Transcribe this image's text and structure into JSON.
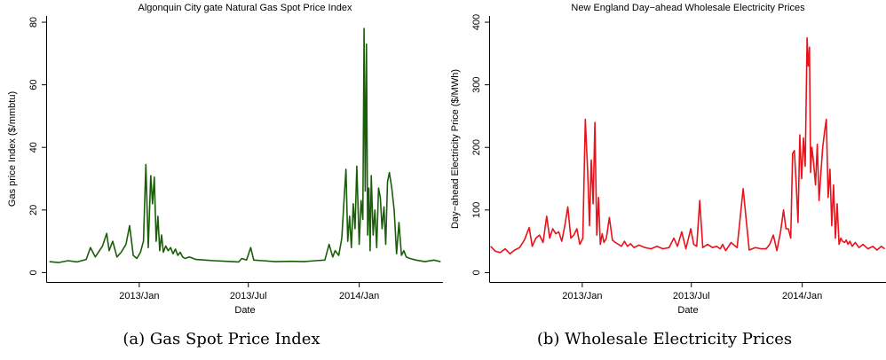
{
  "chart_data": [
    {
      "type": "line",
      "title": "Algonquin City gate Natural Gas Spot Price Index",
      "xlabel": "Date",
      "ylabel": "Gas price Index ($/mmbtu)",
      "x_ticks": [
        "2013/Jan",
        "2013/Jul",
        "2014/Jan"
      ],
      "y_ticks": [
        0,
        20,
        40,
        60,
        80
      ],
      "xlim": [
        "2012-08-01",
        "2014-05-20"
      ],
      "ylim": [
        -3,
        82
      ],
      "grid": false,
      "color": "#1a5e0a",
      "caption": "(a) Gas Spot Price Index",
      "series": [
        {
          "x": [
            "2012-08-05",
            "2012-08-20",
            "2012-09-05",
            "2012-09-20",
            "2012-10-05",
            "2012-10-12",
            "2012-10-20",
            "2012-11-01",
            "2012-11-08",
            "2012-11-12",
            "2012-11-18",
            "2012-11-25",
            "2012-12-02",
            "2012-12-10",
            "2012-12-16",
            "2012-12-22",
            "2012-12-28",
            "2013-01-03",
            "2013-01-08",
            "2013-01-12",
            "2013-01-16",
            "2013-01-20",
            "2013-01-23",
            "2013-01-26",
            "2013-01-29",
            "2013-02-01",
            "2013-02-04",
            "2013-02-07",
            "2013-02-10",
            "2013-02-14",
            "2013-02-18",
            "2013-02-22",
            "2013-02-26",
            "2013-03-02",
            "2013-03-06",
            "2013-03-10",
            "2013-03-14",
            "2013-03-18",
            "2013-03-25",
            "2013-04-05",
            "2013-04-20",
            "2013-05-05",
            "2013-05-25",
            "2013-06-15",
            "2013-06-20",
            "2013-06-28",
            "2013-07-05",
            "2013-07-10",
            "2013-07-25",
            "2013-08-15",
            "2013-09-10",
            "2013-10-01",
            "2013-10-20",
            "2013-11-05",
            "2013-11-12",
            "2013-11-18",
            "2013-11-22",
            "2013-11-28",
            "2013-12-03",
            "2013-12-07",
            "2013-12-10",
            "2013-12-13",
            "2013-12-16",
            "2013-12-19",
            "2013-12-22",
            "2013-12-25",
            "2013-12-28",
            "2014-01-01",
            "2014-01-04",
            "2014-01-07",
            "2014-01-09",
            "2014-01-11",
            "2014-01-13",
            "2014-01-15",
            "2014-01-17",
            "2014-01-19",
            "2014-01-21",
            "2014-01-24",
            "2014-01-27",
            "2014-01-30",
            "2014-02-02",
            "2014-02-05",
            "2014-02-08",
            "2014-02-11",
            "2014-02-14",
            "2014-02-17",
            "2014-02-20",
            "2014-02-24",
            "2014-02-28",
            "2014-03-04",
            "2014-03-08",
            "2014-03-12",
            "2014-03-16",
            "2014-03-20",
            "2014-03-26",
            "2014-04-05",
            "2014-04-20",
            "2014-05-05",
            "2014-05-16"
          ],
          "values": [
            3.5,
            3.2,
            3.8,
            3.4,
            4.2,
            8.0,
            5.0,
            8.5,
            12.5,
            7.0,
            10.0,
            5.0,
            6.5,
            9.0,
            15.0,
            5.5,
            4.5,
            6.5,
            10.0,
            34.5,
            8.0,
            31.0,
            22.0,
            30.5,
            10.0,
            18.0,
            7.0,
            12.0,
            6.5,
            8.5,
            7.0,
            8.0,
            6.0,
            7.5,
            5.5,
            6.5,
            5.0,
            4.5,
            5.0,
            4.2,
            4.0,
            3.8,
            3.6,
            3.4,
            4.5,
            4.0,
            8.0,
            4.0,
            3.8,
            3.5,
            3.6,
            3.5,
            3.8,
            4.0,
            9.0,
            5.0,
            7.0,
            5.5,
            11.0,
            24.0,
            33.0,
            10.0,
            18.0,
            8.0,
            22.0,
            14.0,
            34.0,
            9.0,
            23.0,
            17.0,
            78.0,
            26.0,
            73.0,
            12.0,
            27.0,
            7.0,
            31.0,
            12.0,
            20.0,
            8.0,
            27.0,
            24.0,
            14.0,
            21.0,
            9.0,
            29.0,
            32.0,
            27.0,
            20.0,
            6.0,
            16.0,
            5.5,
            7.0,
            5.0,
            4.5,
            4.0,
            3.5,
            4.0,
            3.5
          ]
        }
      ]
    },
    {
      "type": "line",
      "title": "New England Day−ahead Wholesale Electricity Prices",
      "xlabel": "Date",
      "ylabel": "Day−ahead Electricity Price ($/MWh)",
      "x_ticks": [
        "2013/Jan",
        "2013/Jul",
        "2014/Jan"
      ],
      "y_ticks": [
        0,
        100,
        200,
        300,
        400
      ],
      "xlim": [
        "2012-08-01",
        "2014-05-20"
      ],
      "ylim": [
        -15,
        410
      ],
      "grid": false,
      "color": "#e8131b",
      "caption": "(b) Wholesale Electricity Prices",
      "series": [
        {
          "x": [
            "2012-08-02",
            "2012-08-10",
            "2012-08-18",
            "2012-08-26",
            "2012-09-03",
            "2012-09-11",
            "2012-09-19",
            "2012-09-27",
            "2012-10-05",
            "2012-10-10",
            "2012-10-16",
            "2012-10-22",
            "2012-10-28",
            "2012-11-03",
            "2012-11-08",
            "2012-11-13",
            "2012-11-18",
            "2012-11-23",
            "2012-11-28",
            "2012-12-03",
            "2012-12-08",
            "2012-12-13",
            "2012-12-18",
            "2012-12-23",
            "2012-12-28",
            "2013-01-02",
            "2013-01-06",
            "2013-01-10",
            "2013-01-13",
            "2013-01-16",
            "2013-01-19",
            "2013-01-22",
            "2013-01-25",
            "2013-01-28",
            "2013-01-31",
            "2013-02-03",
            "2013-02-06",
            "2013-02-10",
            "2013-02-15",
            "2013-02-20",
            "2013-02-25",
            "2013-03-02",
            "2013-03-07",
            "2013-03-12",
            "2013-03-17",
            "2013-03-22",
            "2013-03-28",
            "2013-04-05",
            "2013-04-15",
            "2013-04-25",
            "2013-05-05",
            "2013-05-15",
            "2013-05-25",
            "2013-06-02",
            "2013-06-08",
            "2013-06-15",
            "2013-06-22",
            "2013-06-30",
            "2013-07-05",
            "2013-07-10",
            "2013-07-15",
            "2013-07-20",
            "2013-07-28",
            "2013-08-05",
            "2013-08-12",
            "2013-08-18",
            "2013-08-22",
            "2013-08-27",
            "2013-09-05",
            "2013-09-15",
            "2013-09-25",
            "2013-10-05",
            "2013-10-15",
            "2013-10-25",
            "2013-11-02",
            "2013-11-08",
            "2013-11-14",
            "2013-11-20",
            "2013-11-26",
            "2013-12-01",
            "2013-12-05",
            "2013-12-09",
            "2013-12-13",
            "2013-12-16",
            "2013-12-19",
            "2013-12-22",
            "2013-12-25",
            "2013-12-28",
            "2013-12-31",
            "2014-01-03",
            "2014-01-06",
            "2014-01-09",
            "2014-01-11",
            "2014-01-13",
            "2014-01-15",
            "2014-01-17",
            "2014-01-20",
            "2014-01-23",
            "2014-01-26",
            "2014-01-29",
            "2014-02-01",
            "2014-02-04",
            "2014-02-07",
            "2014-02-10",
            "2014-02-13",
            "2014-02-16",
            "2014-02-19",
            "2014-02-22",
            "2014-02-25",
            "2014-02-28",
            "2014-03-03",
            "2014-03-06",
            "2014-03-09",
            "2014-03-12",
            "2014-03-15",
            "2014-03-18",
            "2014-03-21",
            "2014-03-25",
            "2014-03-30",
            "2014-04-05",
            "2014-04-12",
            "2014-04-20",
            "2014-04-28",
            "2014-05-05",
            "2014-05-12",
            "2014-05-18"
          ],
          "values": [
            42,
            34,
            32,
            38,
            30,
            36,
            40,
            52,
            72,
            42,
            55,
            60,
            48,
            90,
            55,
            70,
            62,
            65,
            50,
            75,
            105,
            55,
            60,
            70,
            45,
            55,
            245,
            160,
            75,
            180,
            110,
            240,
            60,
            120,
            45,
            62,
            48,
            55,
            88,
            52,
            48,
            45,
            42,
            50,
            42,
            46,
            40,
            44,
            40,
            38,
            42,
            38,
            40,
            55,
            42,
            65,
            38,
            70,
            45,
            42,
            115,
            40,
            45,
            40,
            42,
            38,
            45,
            35,
            48,
            40,
            134,
            36,
            40,
            38,
            38,
            45,
            60,
            35,
            65,
            100,
            70,
            70,
            55,
            190,
            195,
            140,
            80,
            220,
            150,
            215,
            170,
            375,
            330,
            360,
            160,
            200,
            175,
            140,
            205,
            115,
            160,
            200,
            225,
            245,
            120,
            165,
            75,
            140,
            55,
            110,
            45,
            55,
            50,
            48,
            52,
            45,
            50,
            42,
            48,
            40,
            45,
            38,
            42,
            36,
            42,
            38
          ]
        }
      ]
    }
  ]
}
